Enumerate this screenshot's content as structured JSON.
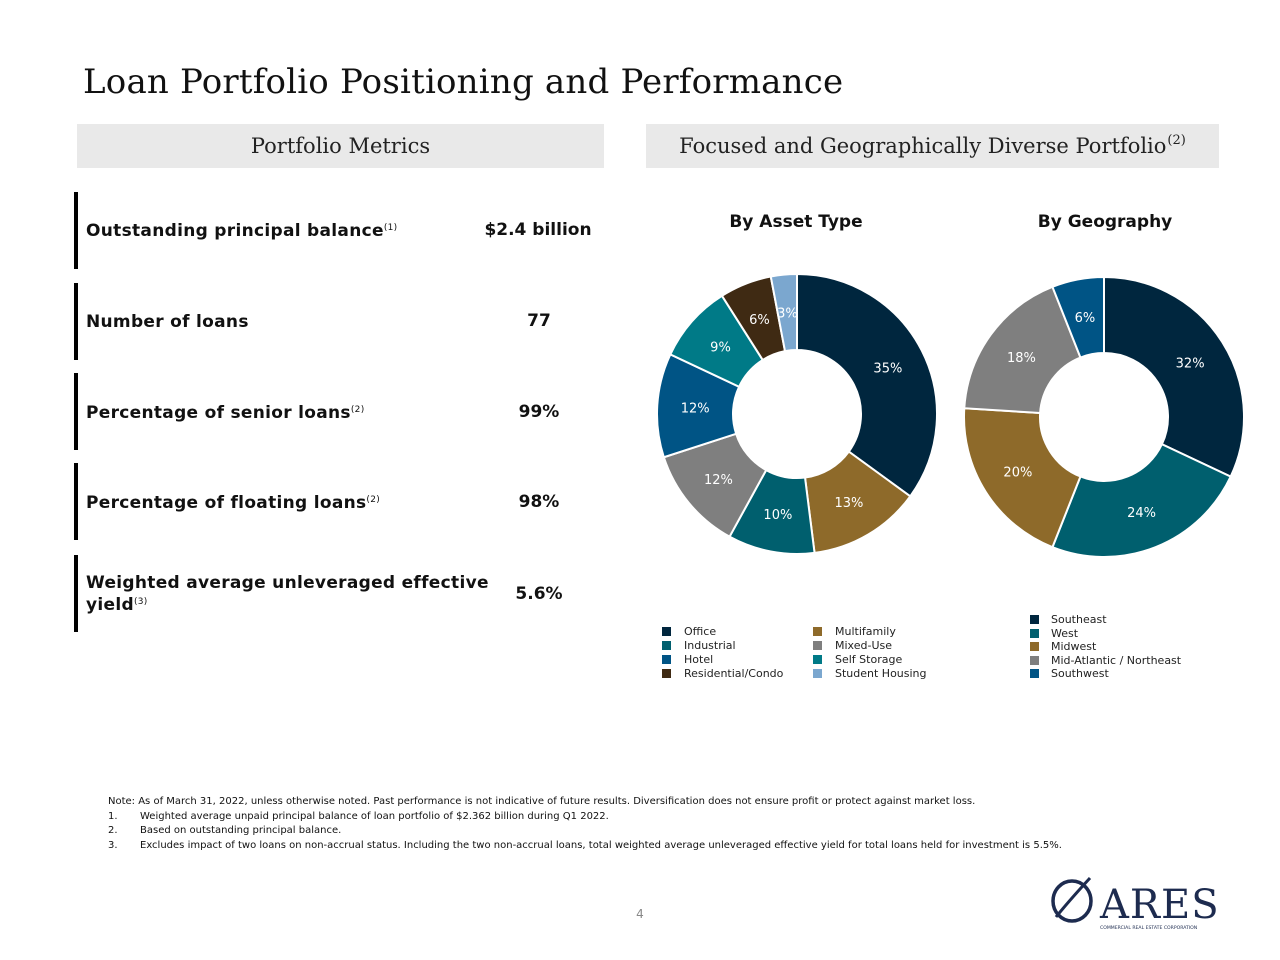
{
  "page": {
    "title": "Loan Portfolio Positioning and Performance",
    "page_number": "4"
  },
  "metrics_section": {
    "header": "Portfolio Metrics",
    "rows": [
      {
        "label": "Outstanding principal balance",
        "footnote": "(1)",
        "value": "$2.4 billion"
      },
      {
        "label": "Number of loans",
        "footnote": "",
        "value": "77"
      },
      {
        "label": "Percentage of senior loans",
        "footnote": "(2)",
        "value": "99%"
      },
      {
        "label": "Percentage of floating loans",
        "footnote": "(2)",
        "value": "98%"
      },
      {
        "label_line1": "Weighted average unleveraged effective",
        "label_line2": "yield",
        "footnote": "(3)",
        "value": "5.6%"
      }
    ]
  },
  "portfolio_section": {
    "header": "Focused and Geographically Diverse Portfolio",
    "header_footnote": "(2)"
  },
  "chart_data": [
    {
      "type": "pie",
      "title": "By Asset Type",
      "categories": [
        "Office",
        "Multifamily",
        "Industrial",
        "Mixed-Use",
        "Hotel",
        "Self Storage",
        "Residential/Condo",
        "Student Housing"
      ],
      "values": [
        35,
        13,
        10,
        12,
        12,
        9,
        6,
        3
      ],
      "labels": [
        "35%",
        "13%",
        "10%",
        "12%",
        "12%",
        "9%",
        "6%",
        "3%"
      ],
      "colors": [
        "#00263e",
        "#8e6a2a",
        "#005f6e",
        "#7f7f7f",
        "#005485",
        "#007a87",
        "#3f2a13",
        "#7ba7cf"
      ],
      "legend": [
        {
          "name": "Office",
          "color": "#00263e"
        },
        {
          "name": "Industrial",
          "color": "#005f6e"
        },
        {
          "name": "Hotel",
          "color": "#005485"
        },
        {
          "name": "Residential/Condo",
          "color": "#3f2a13"
        },
        {
          "name": "Multifamily",
          "color": "#8e6a2a"
        },
        {
          "name": "Mixed-Use",
          "color": "#7f7f7f"
        },
        {
          "name": "Self Storage",
          "color": "#007a87"
        },
        {
          "name": "Student Housing",
          "color": "#7ba7cf"
        }
      ]
    },
    {
      "type": "pie",
      "title": "By Geography",
      "categories": [
        "Southeast",
        "West",
        "Midwest",
        "Mid-Atlantic / Northeast",
        "Southwest"
      ],
      "values": [
        32,
        24,
        20,
        18,
        6
      ],
      "labels": [
        "32%",
        "24%",
        "20%",
        "18%",
        "6%"
      ],
      "colors": [
        "#00263e",
        "#005f6e",
        "#8e6a2a",
        "#7f7f7f",
        "#005485"
      ],
      "legend": [
        {
          "name": "Southeast",
          "color": "#00263e"
        },
        {
          "name": "West",
          "color": "#005f6e"
        },
        {
          "name": "Midwest",
          "color": "#8e6a2a"
        },
        {
          "name": "Mid-Atlantic / Northeast",
          "color": "#7f7f7f"
        },
        {
          "name": "Southwest",
          "color": "#005485"
        }
      ]
    }
  ],
  "notes": {
    "intro": "Note: As of March 31, 2022, unless otherwise noted. Past performance is not indicative of future results. Diversification does not ensure profit or protect against market loss.",
    "items": [
      {
        "num": "1.",
        "text": "Weighted average unpaid principal balance of loan portfolio of $2.362 billion during Q1 2022."
      },
      {
        "num": "2.",
        "text": "Based on outstanding principal balance."
      },
      {
        "num": "3.",
        "text": "Excludes impact of two loans on non-accrual status. Including the two non-accrual loans, total weighted average unleveraged effective yield for total loans held for investment is 5.5%."
      }
    ]
  },
  "logo": {
    "wordmark": "ARES",
    "tagline": "COMMERCIAL REAL ESTATE CORPORATION"
  }
}
